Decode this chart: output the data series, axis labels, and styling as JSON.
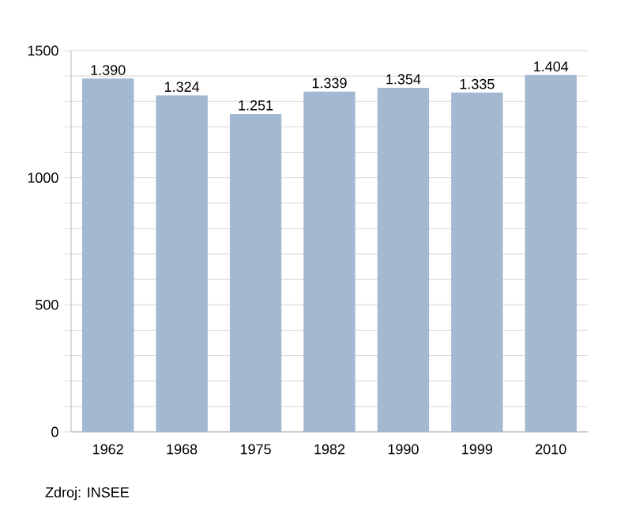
{
  "chart_data": {
    "type": "bar",
    "categories": [
      "1962",
      "1968",
      "1975",
      "1982",
      "1990",
      "1999",
      "2010"
    ],
    "values": [
      1390,
      1324,
      1251,
      1339,
      1354,
      1335,
      1404
    ],
    "value_labels": [
      "1.390",
      "1.324",
      "1.251",
      "1.339",
      "1.354",
      "1.335",
      "1.404"
    ],
    "color": "#a3b8d1",
    "ylim": [
      0,
      1500
    ],
    "yticks": [
      0,
      {
        "value": 100,
        "label": null
      },
      {
        "value": 200,
        "label": null
      },
      {
        "value": 300,
        "label": null
      },
      {
        "value": 400,
        "label": null
      },
      500,
      {
        "value": 600,
        "label": null
      },
      {
        "value": 700,
        "label": null
      },
      {
        "value": 800,
        "label": null
      },
      {
        "value": 900,
        "label": null
      },
      1000,
      {
        "value": 1100,
        "label": null
      },
      {
        "value": 1200,
        "label": null
      },
      {
        "value": 1300,
        "label": null
      },
      {
        "value": 1400,
        "label": null
      },
      1500
    ],
    "grid": "y",
    "annotations": [
      "Zdroj: INSEE"
    ]
  }
}
